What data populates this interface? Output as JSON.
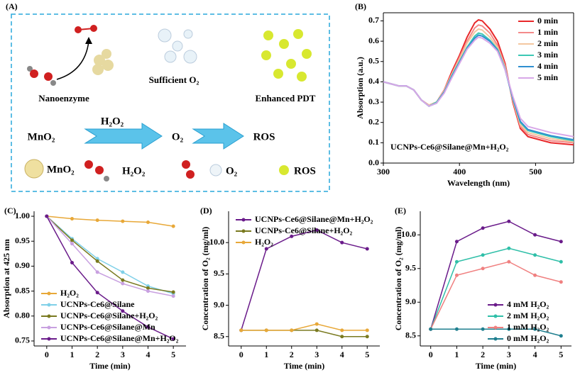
{
  "schematic": {
    "panel_label": "(A)",
    "captions": [
      "Nanoenzyme",
      "Sufficient O₂",
      "Enhanced PDT"
    ],
    "flow": [
      "MnO₂",
      "H₂O₂",
      "O₂",
      "ROS"
    ],
    "legend": [
      "MnO₂",
      "H₂O₂",
      "O₂",
      "ROS"
    ]
  },
  "chart_data": [
    {
      "type": "line",
      "panel_label": "(B)",
      "x_label": "Wavelength (nm)",
      "y_label": "Absorption (a.u.)",
      "annotation": "UCNPs-Ce6@Silane@Mn+H₂O₂",
      "legend": "top-right",
      "markers": false,
      "x": [
        300,
        310,
        320,
        330,
        340,
        350,
        360,
        370,
        380,
        390,
        400,
        410,
        420,
        425,
        430,
        440,
        450,
        460,
        470,
        480,
        490,
        500,
        520,
        550
      ],
      "xlim": [
        300,
        550
      ],
      "xticks": [
        300,
        400,
        500
      ],
      "ylim": [
        0,
        0.74
      ],
      "yticks": [
        {
          "value": 0,
          "label": "0.0"
        },
        0.1,
        0.2,
        0.3,
        0.4,
        0.5,
        0.6,
        0.7
      ],
      "series": [
        {
          "name": "0 min",
          "color": "#e8282a",
          "values": [
            0.4,
            0.39,
            0.38,
            0.38,
            0.36,
            0.31,
            0.285,
            0.3,
            0.36,
            0.45,
            0.53,
            0.62,
            0.69,
            0.705,
            0.7,
            0.66,
            0.6,
            0.49,
            0.3,
            0.17,
            0.13,
            0.12,
            0.1,
            0.09
          ]
        },
        {
          "name": "1 min",
          "color": "#f48a8a",
          "values": [
            0.4,
            0.39,
            0.38,
            0.38,
            0.36,
            0.31,
            0.285,
            0.3,
            0.36,
            0.44,
            0.52,
            0.6,
            0.665,
            0.68,
            0.675,
            0.64,
            0.58,
            0.48,
            0.31,
            0.18,
            0.14,
            0.13,
            0.11,
            0.1
          ]
        },
        {
          "name": "2 min",
          "color": "#f4c7a0",
          "values": [
            0.4,
            0.39,
            0.38,
            0.38,
            0.36,
            0.31,
            0.285,
            0.3,
            0.355,
            0.435,
            0.51,
            0.59,
            0.645,
            0.66,
            0.655,
            0.62,
            0.57,
            0.47,
            0.31,
            0.19,
            0.15,
            0.14,
            0.12,
            0.105
          ]
        },
        {
          "name": "3 min",
          "color": "#3cc8b4",
          "values": [
            0.4,
            0.39,
            0.38,
            0.38,
            0.36,
            0.31,
            0.28,
            0.3,
            0.35,
            0.43,
            0.5,
            0.57,
            0.625,
            0.64,
            0.635,
            0.605,
            0.56,
            0.465,
            0.32,
            0.2,
            0.16,
            0.15,
            0.13,
            0.11
          ]
        },
        {
          "name": "4 min",
          "color": "#2f8fd0",
          "values": [
            0.4,
            0.39,
            0.38,
            0.38,
            0.36,
            0.31,
            0.28,
            0.295,
            0.35,
            0.425,
            0.495,
            0.565,
            0.615,
            0.63,
            0.625,
            0.6,
            0.555,
            0.46,
            0.32,
            0.205,
            0.165,
            0.155,
            0.135,
            0.115
          ]
        },
        {
          "name": "5 min",
          "color": "#d8a8e8",
          "values": [
            0.4,
            0.39,
            0.38,
            0.38,
            0.36,
            0.31,
            0.28,
            0.295,
            0.345,
            0.42,
            0.49,
            0.56,
            0.605,
            0.62,
            0.615,
            0.59,
            0.55,
            0.46,
            0.33,
            0.22,
            0.18,
            0.17,
            0.15,
            0.13
          ]
        }
      ]
    },
    {
      "type": "line",
      "panel_label": "(C)",
      "x_label": "Time (min)",
      "y_label": "Absorption at 425 nm",
      "legend": "bottom-left",
      "markers": true,
      "x": [
        0,
        1,
        2,
        3,
        4,
        5
      ],
      "xlim": [
        -0.5,
        5.5
      ],
      "xticks": [
        0,
        1,
        2,
        3,
        4,
        5
      ],
      "ylim": [
        0.74,
        1.01
      ],
      "yticks": [
        0.75,
        {
          "value": 0.8,
          "label": "0.80"
        },
        0.85,
        {
          "value": 0.9,
          "label": "0.90"
        },
        0.95,
        {
          "value": 1,
          "label": "1.00"
        }
      ],
      "series": [
        {
          "name": "H₂O₂",
          "color": "#e8a838",
          "values": [
            1.0,
            0.995,
            0.992,
            0.99,
            0.988,
            0.98
          ]
        },
        {
          "name": "UCNPs-Ce6@Silane",
          "color": "#7fd0e8",
          "values": [
            1.0,
            0.955,
            0.915,
            0.888,
            0.86,
            0.845
          ]
        },
        {
          "name": "UCNPs-Ce6@Silane+H₂O₂",
          "color": "#7a7a20",
          "values": [
            1.0,
            0.952,
            0.91,
            0.872,
            0.856,
            0.848
          ]
        },
        {
          "name": "UCNPs-Ce6@Silane@Mn",
          "color": "#c8a0e0",
          "values": [
            1.0,
            0.945,
            0.888,
            0.865,
            0.85,
            0.84
          ]
        },
        {
          "name": "UCNPs-Ce6@Silane@Mn+H₂O₂",
          "color": "#6a1b8a",
          "values": [
            1.0,
            0.907,
            0.847,
            0.81,
            0.778,
            0.754
          ]
        }
      ]
    },
    {
      "type": "line",
      "panel_label": "(D)",
      "x_label": "Time (min)",
      "y_label": "Concentration of O₂ (mg/ml)",
      "legend": "top-left",
      "markers": true,
      "x": [
        0,
        1,
        2,
        3,
        4,
        5
      ],
      "xlim": [
        -0.5,
        5.5
      ],
      "xticks": [
        0,
        1,
        2,
        3,
        4,
        5
      ],
      "ylim": [
        8.35,
        10.5
      ],
      "yticks": [
        8.5,
        {
          "value": 9,
          "label": "9.0"
        },
        9.5,
        {
          "value": 10,
          "label": "10.0"
        }
      ],
      "series": [
        {
          "name": "UCNPs-Ce6@Silane@Mn+H₂O₂",
          "color": "#6a1b8a",
          "values": [
            8.6,
            9.9,
            10.1,
            10.2,
            10.0,
            9.9
          ]
        },
        {
          "name": "UCNPs-Ce6@Silane+H₂O₂",
          "color": "#7a7a20",
          "values": [
            8.6,
            8.6,
            8.6,
            8.6,
            8.5,
            8.5
          ]
        },
        {
          "name": "H₂O₂",
          "color": "#e8a838",
          "values": [
            8.6,
            8.6,
            8.6,
            8.7,
            8.6,
            8.6
          ]
        }
      ]
    },
    {
      "type": "line",
      "panel_label": "(E)",
      "x_label": "Time (min)",
      "y_label": "Concentration of O₂ (mg/ml)",
      "legend": "bottom-right",
      "markers": true,
      "x": [
        0,
        1,
        2,
        3,
        4,
        5
      ],
      "xlim": [
        -0.4,
        5.4
      ],
      "xticks": [
        0,
        1,
        2,
        3,
        4,
        5
      ],
      "ylim": [
        8.35,
        10.35
      ],
      "yticks": [
        8.5,
        {
          "value": 9,
          "label": "9.0"
        },
        9.5,
        {
          "value": 10,
          "label": "10.0"
        }
      ],
      "series": [
        {
          "name": "4 mM H₂O₂",
          "color": "#6a1b8a",
          "values": [
            8.6,
            9.9,
            10.1,
            10.2,
            10.0,
            9.9
          ]
        },
        {
          "name": "2 mM H₂O₂",
          "color": "#2fbfa8",
          "values": [
            8.6,
            9.6,
            9.7,
            9.8,
            9.7,
            9.6
          ]
        },
        {
          "name": "1 mM H₂O₂",
          "color": "#f08080",
          "values": [
            8.6,
            9.4,
            9.5,
            9.6,
            9.4,
            9.3
          ]
        },
        {
          "name": "0 mM H₂O₂",
          "color": "#1f7f8f",
          "values": [
            8.6,
            8.6,
            8.6,
            8.6,
            8.6,
            8.5
          ]
        }
      ]
    }
  ]
}
